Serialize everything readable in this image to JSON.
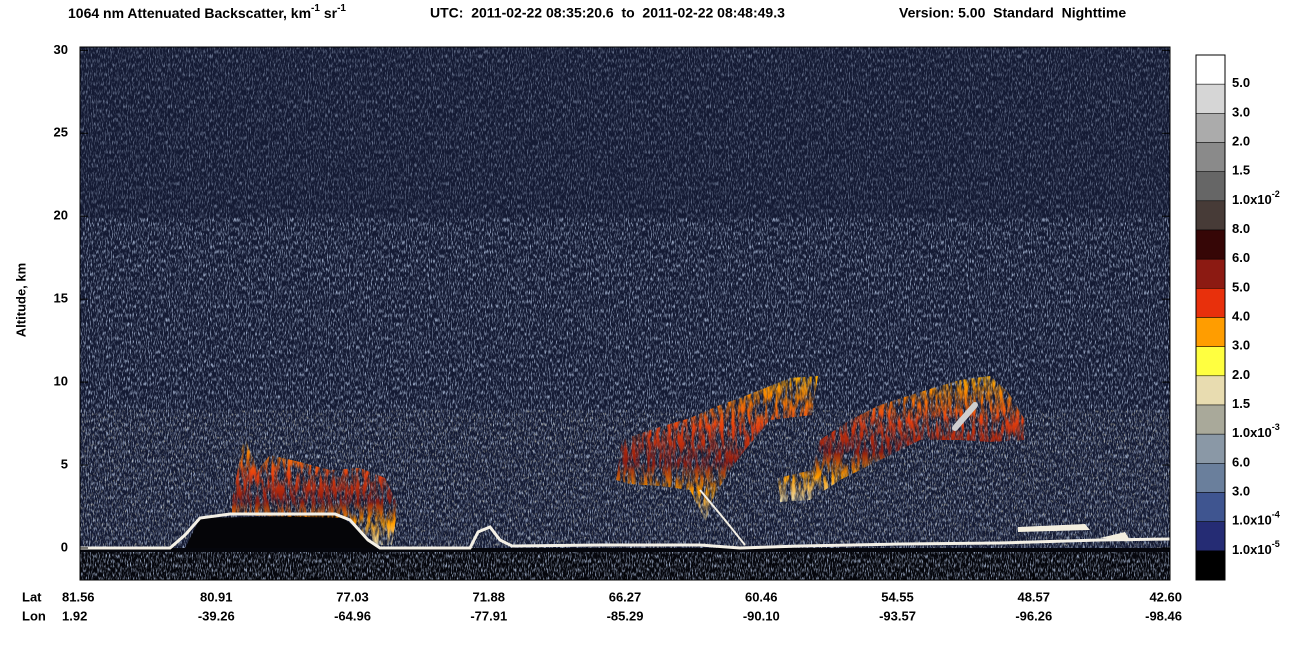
{
  "chart_data": {
    "type": "heatmap",
    "title": {
      "text": "1064 nm Attenuated Backscatter, km",
      "exp1": "-1",
      "mid": " sr",
      "exp2": "-1"
    },
    "utc": "UTC:  2011-02-22 08:35:20.6  to  2011-02-22 08:48:49.3",
    "version": "Version: 5.00  Standard  Nighttime",
    "y_label": "Altitude, km",
    "ylim": [
      -1.93,
      30.2
    ],
    "yticks": [
      0,
      5,
      10,
      15,
      20,
      25,
      30
    ],
    "x_row_labels": [
      "Lat",
      "Lon"
    ],
    "lat": [
      81.56,
      80.91,
      77.03,
      71.88,
      66.27,
      60.46,
      54.55,
      48.57,
      42.6
    ],
    "lat_labels": [
      "81.56",
      "80.91",
      "77.03",
      "71.88",
      "66.27",
      "60.46",
      "54.55",
      "48.57",
      "42.60"
    ],
    "lon": [
      1.92,
      -39.26,
      -64.96,
      -77.91,
      -85.29,
      -90.1,
      -93.57,
      -96.26,
      -98.46
    ],
    "lon_labels": [
      "1.92",
      "-39.26",
      "-64.96",
      "-77.91",
      "-85.29",
      "-90.10",
      "-93.57",
      "-96.26",
      "-98.46"
    ],
    "colorbar": {
      "colors": [
        "#ffffff",
        "#d6d6d6",
        "#ababab",
        "#8a8a8a",
        "#666666",
        "#473b37",
        "#360606",
        "#8c1a12",
        "#e8300c",
        "#ff9d00",
        "#ffff40",
        "#e8dcb0",
        "#a9a99a",
        "#8a98a6",
        "#6a7f9c",
        "#3f5590",
        "#252c74",
        "#000000"
      ],
      "labels": [
        {
          "base": "5.0"
        },
        {
          "base": "3.0"
        },
        {
          "base": "2.0"
        },
        {
          "base": "1.5"
        },
        {
          "base": "1.0x10",
          "exp": "-2"
        },
        {
          "base": "8.0"
        },
        {
          "base": "6.0"
        },
        {
          "base": "5.0"
        },
        {
          "base": "4.0"
        },
        {
          "base": "3.0"
        },
        {
          "base": "2.0"
        },
        {
          "base": "1.5"
        },
        {
          "base": "1.0x10",
          "exp": "-3"
        },
        {
          "base": "6.0"
        },
        {
          "base": "3.0"
        },
        {
          "base": "1.0x10",
          "exp": "-4"
        },
        {
          "base": "1.0x10",
          "exp": "-5"
        }
      ]
    }
  }
}
